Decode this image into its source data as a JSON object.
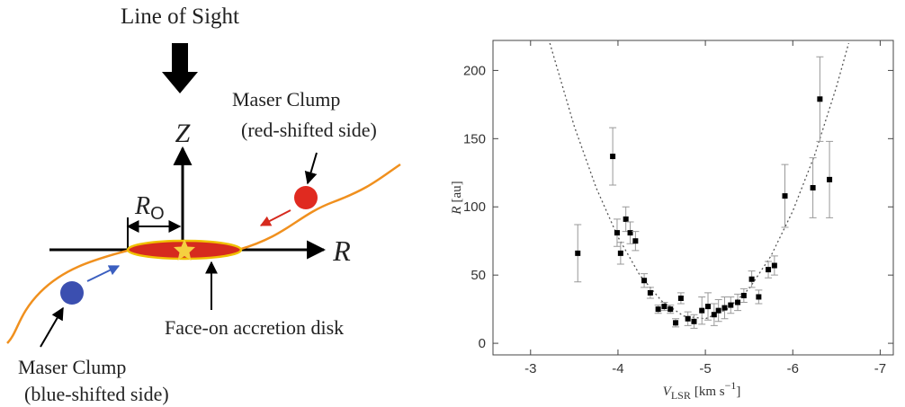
{
  "diagram": {
    "line_of_sight": "Line of Sight",
    "z_label": "Z",
    "r0_label": {
      "symbol": "R",
      "subscript": "O"
    },
    "r_label": "R",
    "red_clump": {
      "title": "Maser Clump",
      "note": "(red-shifted side)"
    },
    "disk_label": "Face-on accretion disk",
    "blue_clump": {
      "title": "Maser Clump",
      "note": "(blue-shifted side)"
    }
  },
  "chart_data": {
    "type": "scatter",
    "x_label": {
      "symbol": "V",
      "subscript": "LSR",
      "unit": "[km s",
      "exponent": "−1",
      "close": "]"
    },
    "y_label": {
      "symbol": "R",
      "unit": "[au]"
    },
    "xlim": [
      -2.57,
      -7.15
    ],
    "xticks": [
      -3,
      -4,
      -5,
      -6,
      -7
    ],
    "ylim": [
      -8.5,
      222
    ],
    "yticks": [
      0,
      50,
      100,
      150,
      200
    ],
    "color": "#000000",
    "error_color": "#999999",
    "x": [
      -3.54,
      -3.94,
      -3.99,
      -4.03,
      -4.09,
      -4.14,
      -4.2,
      -4.3,
      -4.37,
      -4.46,
      -4.53,
      -4.6,
      -4.66,
      -4.72,
      -4.8,
      -4.87,
      -4.96,
      -5.03,
      -5.1,
      -5.15,
      -5.22,
      -5.29,
      -5.37,
      -5.44,
      -5.53,
      -5.61,
      -5.72,
      -5.79,
      -5.91,
      -6.23,
      -6.31,
      -6.42
    ],
    "values": [
      66,
      137,
      81,
      66,
      91,
      81,
      75,
      46,
      37,
      25,
      27,
      25,
      15,
      33,
      18,
      16,
      24,
      27,
      21,
      24,
      26,
      28,
      30,
      35,
      47,
      34,
      54,
      57,
      108,
      114,
      179,
      120
    ],
    "errors": [
      21,
      21,
      10,
      8,
      9,
      8,
      7,
      5,
      4,
      3,
      3,
      3,
      3,
      4,
      5,
      5,
      10,
      10,
      8,
      8,
      8,
      6,
      6,
      5,
      6,
      5,
      6,
      7,
      23,
      22,
      31,
      28
    ],
    "curve": {
      "color": "#555555",
      "x": [
        -3.22,
        -3.5,
        -3.75,
        -4.0,
        -4.25,
        -4.5,
        -4.75,
        -5.0,
        -5.25,
        -5.5,
        -5.75,
        -6.0,
        -6.25,
        -6.5,
        -6.64
      ],
      "values": [
        220,
        159,
        114,
        78,
        50,
        31,
        20,
        18,
        25,
        40,
        64,
        97,
        138,
        188,
        220
      ]
    }
  }
}
